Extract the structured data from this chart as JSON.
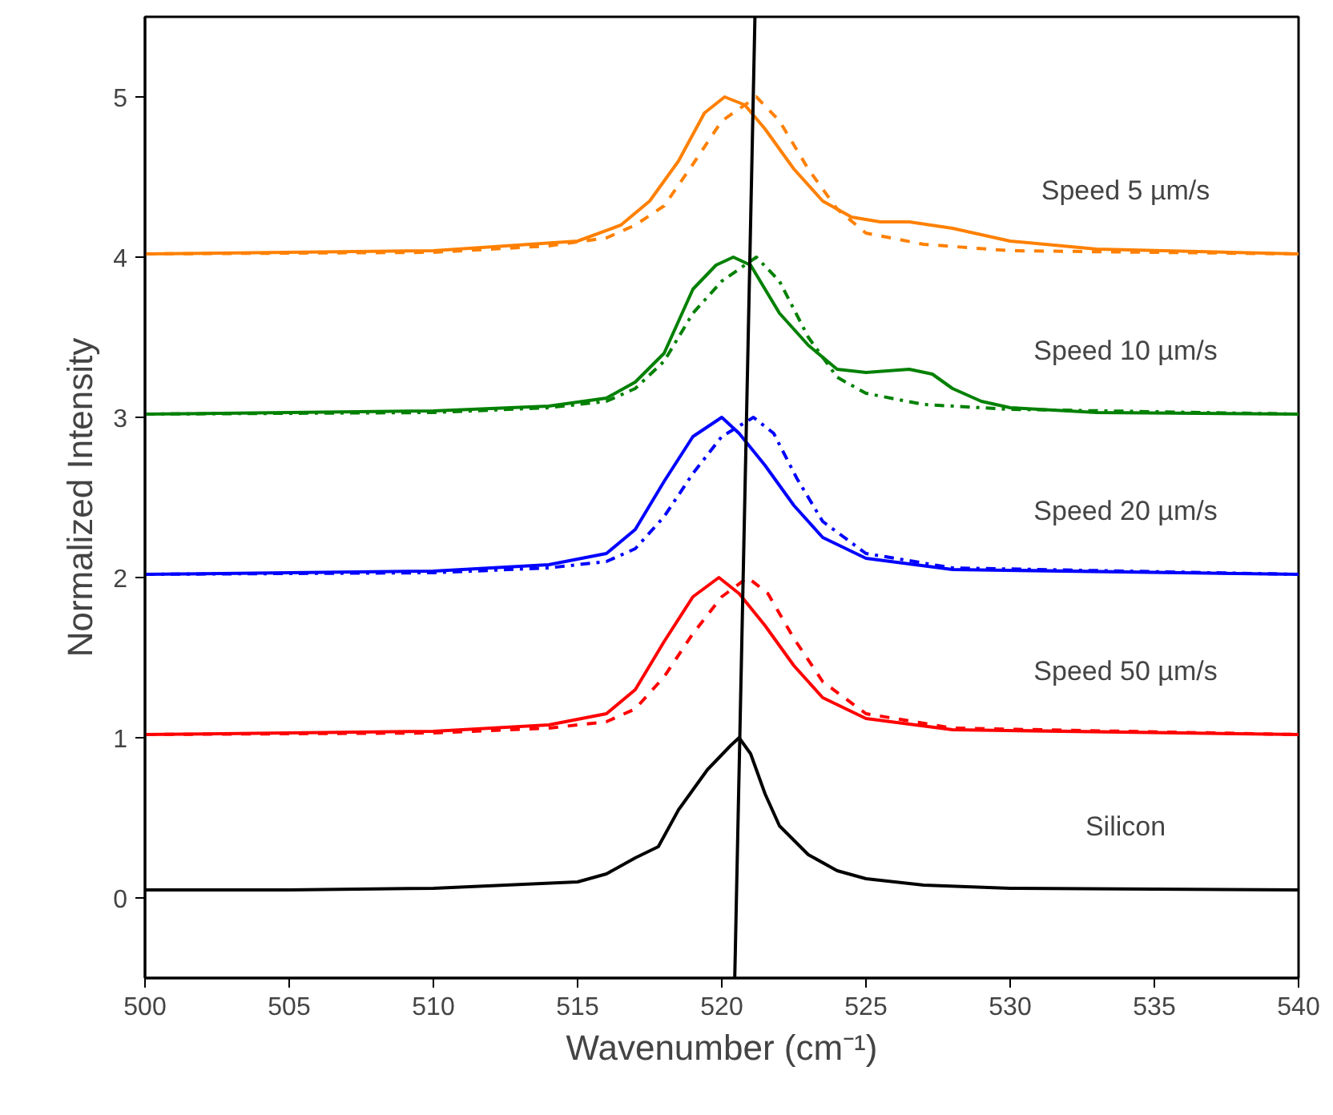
{
  "chart_data": {
    "type": "line",
    "xlabel": "Wavenumber (cm⁻¹)",
    "ylabel": "Normalized Intensity",
    "xlim": [
      500,
      540
    ],
    "ylim": [
      -0.5,
      5.5
    ],
    "xticks": [
      500,
      505,
      510,
      515,
      520,
      525,
      530,
      535,
      540
    ],
    "yticks": [
      0,
      1,
      2,
      3,
      4,
      5
    ],
    "grid": false,
    "series": [
      {
        "name": "Silicon",
        "color": "#000000",
        "line_style": "solid",
        "x": [
          500,
          505,
          510,
          515,
          516,
          517,
          517.8,
          518.5,
          519.5,
          520.3,
          520.6,
          521,
          521.5,
          522,
          523,
          524,
          525,
          527,
          530,
          540
        ],
        "values": [
          0.05,
          0.05,
          0.06,
          0.1,
          0.15,
          0.25,
          0.32,
          0.55,
          0.8,
          0.95,
          1.0,
          0.9,
          0.65,
          0.45,
          0.27,
          0.17,
          0.12,
          0.08,
          0.06,
          0.05
        ]
      },
      {
        "name": "Speed 50 µm/s",
        "color": "#ff0000",
        "line_style": "solid",
        "x": [
          500,
          510,
          514,
          516,
          517,
          518,
          519,
          519.9,
          520.6,
          521.5,
          522.5,
          523.5,
          525,
          528,
          540
        ],
        "values": [
          1.02,
          1.04,
          1.08,
          1.15,
          1.3,
          1.6,
          1.88,
          2.0,
          1.9,
          1.7,
          1.45,
          1.25,
          1.12,
          1.05,
          1.02
        ]
      },
      {
        "color": "#ff0000",
        "line_style": "dashed",
        "x": [
          500,
          510,
          514,
          516,
          517,
          518,
          519,
          520,
          520.9,
          521.6,
          522.5,
          523.5,
          525,
          528,
          540
        ],
        "values": [
          1.02,
          1.03,
          1.06,
          1.1,
          1.18,
          1.38,
          1.65,
          1.88,
          2.0,
          1.9,
          1.62,
          1.35,
          1.15,
          1.06,
          1.02
        ]
      },
      {
        "name": "Speed 20 µm/s",
        "color": "#0000ff",
        "line_style": "solid",
        "x": [
          500,
          510,
          514,
          516,
          517,
          518,
          519,
          520,
          520.6,
          521.5,
          522.5,
          523.5,
          525,
          528,
          540
        ],
        "values": [
          2.02,
          2.04,
          2.08,
          2.15,
          2.3,
          2.6,
          2.88,
          3.0,
          2.9,
          2.7,
          2.45,
          2.25,
          2.12,
          2.05,
          2.02
        ]
      },
      {
        "color": "#0000ff",
        "line_style": "dashdot",
        "x": [
          500,
          510,
          514,
          516,
          517,
          518,
          519,
          520,
          521.1,
          521.8,
          522.6,
          523.5,
          525,
          528,
          540
        ],
        "values": [
          2.02,
          2.03,
          2.06,
          2.1,
          2.18,
          2.38,
          2.65,
          2.88,
          3.0,
          2.9,
          2.62,
          2.35,
          2.15,
          2.06,
          2.02
        ]
      },
      {
        "name": "Speed 10 µm/s",
        "color": "#008000",
        "line_style": "solid",
        "x": [
          500,
          510,
          514,
          516,
          517,
          518,
          518.5,
          519,
          519.8,
          520.4,
          521,
          522,
          523,
          524,
          525,
          526.5,
          527.3,
          528,
          529,
          530,
          533,
          540
        ],
        "values": [
          3.02,
          3.04,
          3.07,
          3.12,
          3.22,
          3.4,
          3.6,
          3.8,
          3.95,
          4.0,
          3.95,
          3.65,
          3.45,
          3.3,
          3.28,
          3.3,
          3.27,
          3.18,
          3.1,
          3.06,
          3.03,
          3.02
        ]
      },
      {
        "color": "#008000",
        "line_style": "dashdot",
        "x": [
          500,
          510,
          514,
          516,
          517,
          518,
          519,
          520,
          521.2,
          522,
          523,
          524,
          525,
          527,
          530,
          540
        ],
        "values": [
          3.02,
          3.03,
          3.06,
          3.1,
          3.18,
          3.35,
          3.65,
          3.85,
          4.0,
          3.85,
          3.5,
          3.25,
          3.15,
          3.08,
          3.05,
          3.02
        ]
      },
      {
        "name": "Speed 5 µm/s",
        "color": "#ff8000",
        "line_style": "solid",
        "x": [
          500,
          510,
          515,
          516.5,
          517.5,
          518.5,
          519.4,
          520.1,
          520.8,
          521.5,
          522.5,
          523.5,
          524.5,
          525.5,
          526.5,
          528,
          530,
          533,
          540
        ],
        "values": [
          4.02,
          4.04,
          4.1,
          4.2,
          4.35,
          4.6,
          4.9,
          5.0,
          4.95,
          4.8,
          4.55,
          4.35,
          4.25,
          4.22,
          4.22,
          4.18,
          4.1,
          4.05,
          4.02
        ]
      },
      {
        "color": "#ff8000",
        "line_style": "dashed",
        "x": [
          500,
          510,
          514,
          516,
          517,
          518,
          519,
          520,
          521.2,
          522,
          523,
          524,
          525,
          527,
          530,
          540
        ],
        "values": [
          4.02,
          4.03,
          4.07,
          4.12,
          4.2,
          4.32,
          4.58,
          4.85,
          5.0,
          4.85,
          4.55,
          4.3,
          4.15,
          4.08,
          4.04,
          4.02
        ]
      },
      {
        "color": "#000000",
        "line_style": "solid",
        "x": [
          520.45,
          521.15
        ],
        "values": [
          -0.5,
          5.5
        ]
      }
    ]
  }
}
